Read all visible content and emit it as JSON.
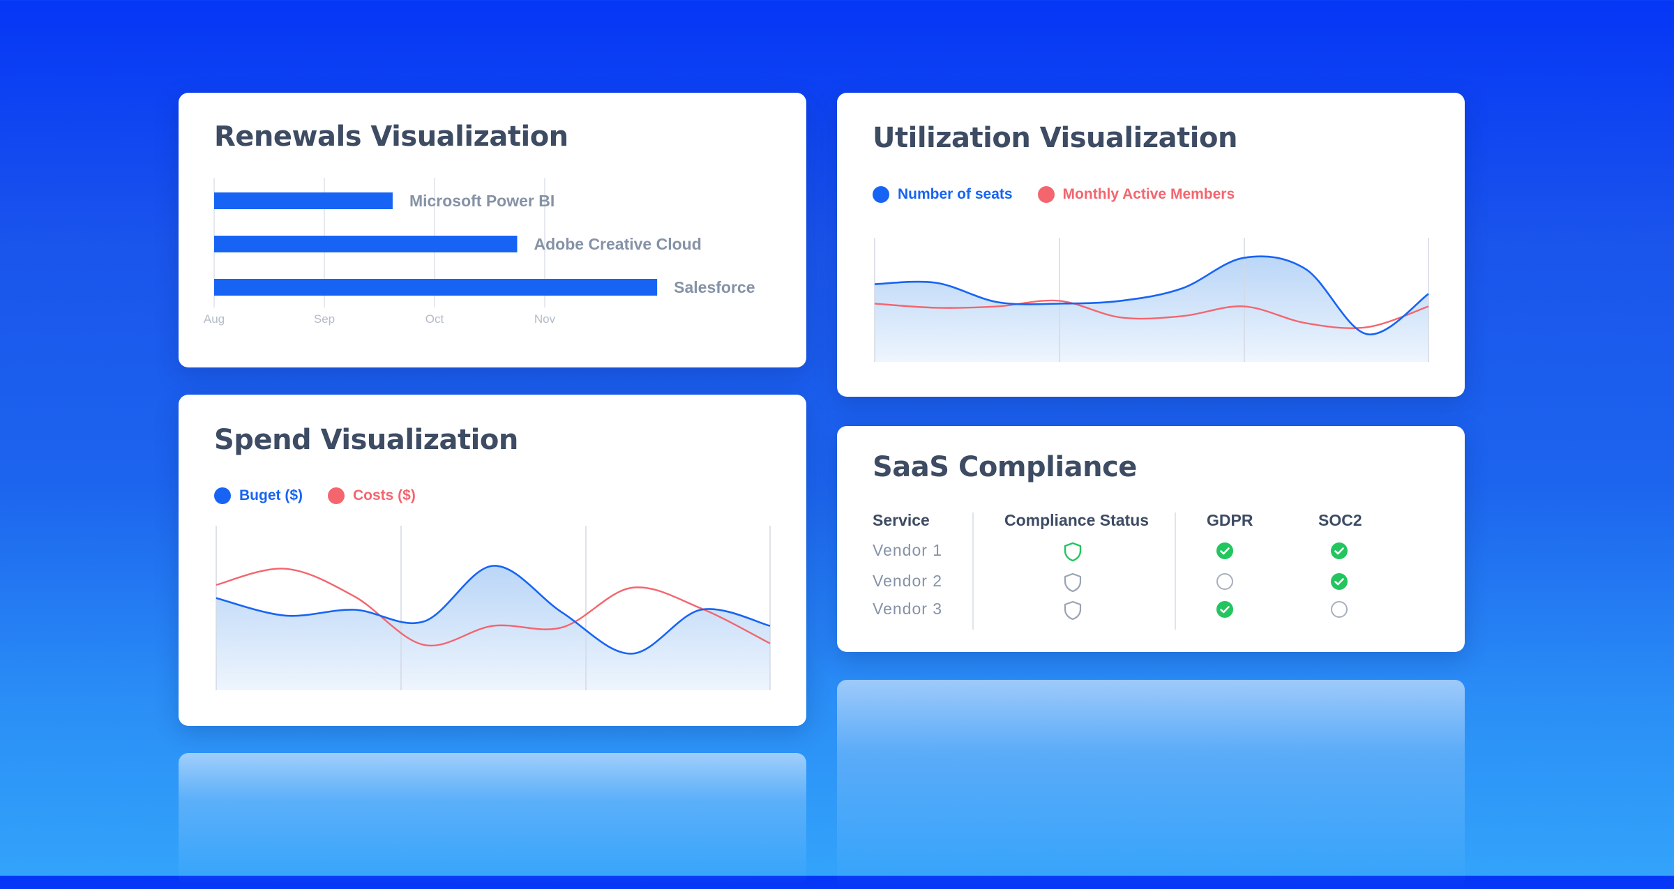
{
  "colors": {
    "blue": "#1764f4",
    "red": "#f4656e",
    "title": "#3d4b63",
    "muted": "#8592a6",
    "green": "#22c55e",
    "grid": "#dde2ea"
  },
  "renewals": {
    "title": "Renewals Visualization",
    "chart_data": {
      "type": "bar",
      "orientation": "horizontal",
      "title": "Renewals Visualization",
      "categories": [
        "Microsoft Power BI",
        "Adobe Creative Cloud",
        "Salesforce"
      ],
      "values": [
        1.62,
        2.75,
        4.02
      ],
      "x_tick_labels": [
        "Aug",
        "Sep",
        "Oct",
        "Nov"
      ],
      "xlim": [
        0,
        4.02
      ],
      "grid": true
    }
  },
  "utilization": {
    "title": "Utilization Visualization",
    "legend": [
      "Number of seats",
      "Monthly Active Members"
    ],
    "chart_data": {
      "type": "area",
      "title": "Utilization Visualization",
      "series": [
        {
          "name": "Number of seats",
          "values": [
            56,
            57,
            43,
            42,
            44,
            53,
            75,
            67,
            20,
            49
          ]
        },
        {
          "name": "Monthly Active Members",
          "values": [
            42,
            39,
            40,
            44,
            32,
            33,
            40,
            28,
            25,
            40
          ]
        }
      ],
      "ylim": [
        0,
        100
      ],
      "legend_position": "top-left",
      "grid": true
    }
  },
  "spend": {
    "title": "Spend Visualization",
    "legend": [
      "Buget ($)",
      "Costs ($)"
    ],
    "chart_data": {
      "type": "area",
      "title": "Spend Visualization",
      "series": [
        {
          "name": "Buget ($)",
          "values": [
            63,
            51,
            55,
            47,
            85,
            53,
            25,
            55,
            44
          ]
        },
        {
          "name": "Costs ($)",
          "values": [
            72,
            83,
            64,
            31,
            44,
            43,
            70,
            56,
            32
          ]
        }
      ],
      "ylim": [
        0,
        100
      ],
      "legend_position": "top-left",
      "grid": true
    }
  },
  "compliance": {
    "title": "SaaS Compliance",
    "headers": [
      "Service",
      "Compliance Status",
      "GDPR",
      "SOC2"
    ],
    "rows": [
      {
        "service": "Vendor 1",
        "status": "compliant",
        "gdpr": true,
        "soc2": true
      },
      {
        "service": "Vendor 2",
        "status": "pending",
        "gdpr": false,
        "soc2": true
      },
      {
        "service": "Vendor 3",
        "status": "pending",
        "gdpr": true,
        "soc2": false
      }
    ],
    "icons": {
      "status": "shield-icon",
      "check": "check-circle-icon",
      "empty": "empty-circle-icon"
    }
  }
}
